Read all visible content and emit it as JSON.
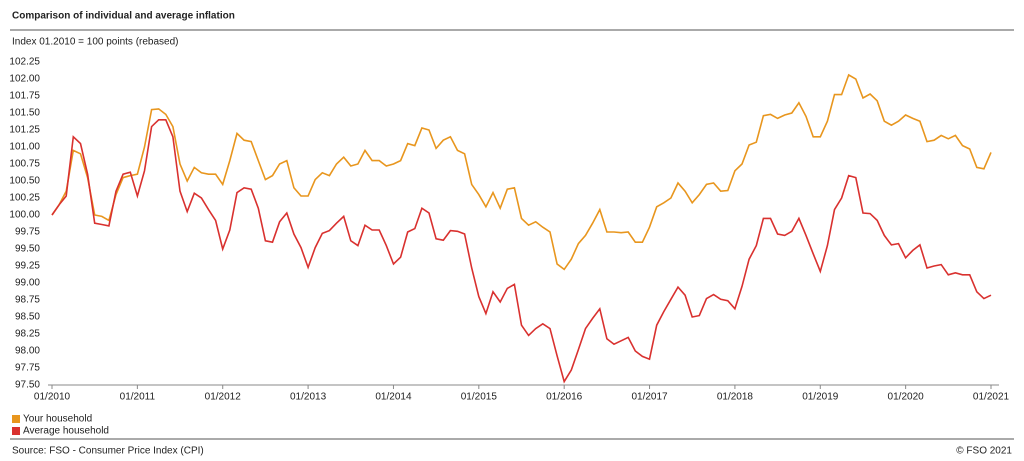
{
  "chart_data": {
    "type": "line",
    "title": "Comparison of individual and average inflation",
    "subtitle": "Index 01.2010 = 100 points (rebased)",
    "source": "Source: FSO - Consumer Price Index (CPI)",
    "copyright": "© FSO 2021",
    "categories": [
      "01/2010",
      null,
      null,
      null,
      null,
      null,
      null,
      null,
      null,
      null,
      null,
      null,
      "01/2011",
      null,
      null,
      null,
      null,
      null,
      null,
      null,
      null,
      null,
      null,
      null,
      "01/2012",
      null,
      null,
      null,
      null,
      null,
      null,
      null,
      null,
      null,
      null,
      null,
      "01/2013",
      null,
      null,
      null,
      null,
      null,
      null,
      null,
      null,
      null,
      null,
      null,
      "01/2014",
      null,
      null,
      null,
      null,
      null,
      null,
      null,
      null,
      null,
      null,
      null,
      "01/2015",
      null,
      null,
      null,
      null,
      null,
      null,
      null,
      null,
      null,
      null,
      null,
      "01/2016",
      null,
      null,
      null,
      null,
      null,
      null,
      null,
      null,
      null,
      null,
      null,
      "01/2017",
      null,
      null,
      null,
      null,
      null,
      null,
      null,
      null,
      null,
      null,
      null,
      "01/2018",
      null,
      null,
      null,
      null,
      null,
      null,
      null,
      null,
      null,
      null,
      null,
      "01/2019",
      null,
      null,
      null,
      null,
      null,
      null,
      null,
      null,
      null,
      null,
      null,
      "01/2020",
      null,
      null,
      null,
      null,
      null,
      null,
      null,
      null,
      null,
      null,
      null,
      "01/2021"
    ],
    "series": [
      {
        "name": "Your household",
        "color": "#e8961e",
        "values": [
          100.0,
          100.15,
          100.35,
          100.95,
          100.9,
          100.55,
          100.0,
          99.98,
          99.92,
          100.3,
          100.55,
          100.58,
          100.6,
          101.0,
          101.55,
          101.56,
          101.48,
          101.3,
          100.75,
          100.5,
          100.7,
          100.62,
          100.6,
          100.6,
          100.45,
          100.8,
          101.2,
          101.1,
          101.08,
          100.8,
          100.52,
          100.58,
          100.75,
          100.8,
          100.4,
          100.28,
          100.28,
          100.52,
          100.62,
          100.58,
          100.75,
          100.85,
          100.72,
          100.75,
          100.95,
          100.8,
          100.8,
          100.72,
          100.75,
          100.8,
          101.05,
          101.02,
          101.28,
          101.25,
          100.98,
          101.1,
          101.15,
          100.95,
          100.9,
          100.45,
          100.3,
          100.12,
          100.33,
          100.1,
          100.38,
          100.4,
          99.95,
          99.85,
          99.9,
          99.82,
          99.75,
          99.28,
          99.2,
          99.35,
          99.58,
          99.7,
          99.88,
          100.08,
          99.75,
          99.75,
          99.74,
          99.75,
          99.6,
          99.6,
          99.82,
          100.12,
          100.18,
          100.25,
          100.47,
          100.35,
          100.18,
          100.3,
          100.45,
          100.47,
          100.35,
          100.36,
          100.65,
          100.75,
          101.03,
          101.07,
          101.46,
          101.48,
          101.42,
          101.47,
          101.5,
          101.65,
          101.45,
          101.15,
          101.15,
          101.38,
          101.77,
          101.77,
          102.06,
          102.0,
          101.72,
          101.78,
          101.68,
          101.38,
          101.32,
          101.38,
          101.47,
          101.42,
          101.38,
          101.08,
          101.1,
          101.17,
          101.12,
          101.17,
          101.02,
          100.97,
          100.7,
          100.68,
          100.92
        ]
      },
      {
        "name": "Average household",
        "color": "#d9312f",
        "values": [
          100.0,
          100.15,
          100.28,
          101.15,
          101.05,
          100.6,
          99.88,
          99.86,
          99.84,
          100.35,
          100.6,
          100.63,
          100.28,
          100.65,
          101.3,
          101.4,
          101.4,
          101.15,
          100.35,
          100.05,
          100.32,
          100.25,
          100.08,
          99.92,
          99.5,
          99.78,
          100.33,
          100.4,
          100.38,
          100.1,
          99.62,
          99.6,
          99.9,
          100.03,
          99.72,
          99.52,
          99.23,
          99.52,
          99.73,
          99.77,
          99.88,
          99.98,
          99.62,
          99.55,
          99.85,
          99.78,
          99.78,
          99.55,
          99.28,
          99.38,
          99.75,
          99.8,
          100.1,
          100.03,
          99.65,
          99.63,
          99.77,
          99.76,
          99.72,
          99.22,
          98.8,
          98.55,
          98.87,
          98.72,
          98.92,
          98.98,
          98.38,
          98.23,
          98.33,
          98.4,
          98.33,
          97.93,
          97.55,
          97.72,
          98.02,
          98.33,
          98.48,
          98.62,
          98.18,
          98.1,
          98.15,
          98.2,
          98.0,
          97.92,
          97.88,
          98.38,
          98.58,
          98.76,
          98.94,
          98.82,
          98.5,
          98.52,
          98.77,
          98.83,
          98.76,
          98.74,
          98.62,
          98.95,
          99.35,
          99.55,
          99.95,
          99.95,
          99.72,
          99.7,
          99.76,
          99.95,
          99.7,
          99.43,
          99.17,
          99.55,
          100.08,
          100.25,
          100.58,
          100.55,
          100.03,
          100.02,
          99.92,
          99.7,
          99.56,
          99.58,
          99.37,
          99.48,
          99.56,
          99.22,
          99.25,
          99.27,
          99.12,
          99.15,
          99.12,
          99.12,
          98.87,
          98.77,
          98.82
        ]
      }
    ],
    "ylim": [
      97.5,
      102.25
    ],
    "yticks": [
      {
        "value": 97.5,
        "label": "97.50"
      },
      {
        "value": 97.75,
        "label": "97.75"
      },
      {
        "value": 98,
        "label": "98.00"
      },
      {
        "value": 98.25,
        "label": "98.25"
      },
      {
        "value": 98.5,
        "label": "98.50"
      },
      {
        "value": 98.75,
        "label": "98.75"
      },
      {
        "value": 99,
        "label": "99.00"
      },
      {
        "value": 99.25,
        "label": "99.25"
      },
      {
        "value": 99.5,
        "label": "99.50"
      },
      {
        "value": 99.75,
        "label": "99.75"
      },
      {
        "value": 100,
        "label": "100.00"
      },
      {
        "value": 100.25,
        "label": "100.25"
      },
      {
        "value": 100.5,
        "label": "100.50"
      },
      {
        "value": 100.75,
        "label": "100.75"
      },
      {
        "value": 101,
        "label": "101.00"
      },
      {
        "value": 101.25,
        "label": "101.25"
      },
      {
        "value": 101.5,
        "label": "101.50"
      },
      {
        "value": 101.75,
        "label": "101.75"
      },
      {
        "value": 102,
        "label": "102.00"
      },
      {
        "value": 102.25,
        "label": "102.25"
      }
    ],
    "grid": false,
    "legend": "bottom-left"
  }
}
